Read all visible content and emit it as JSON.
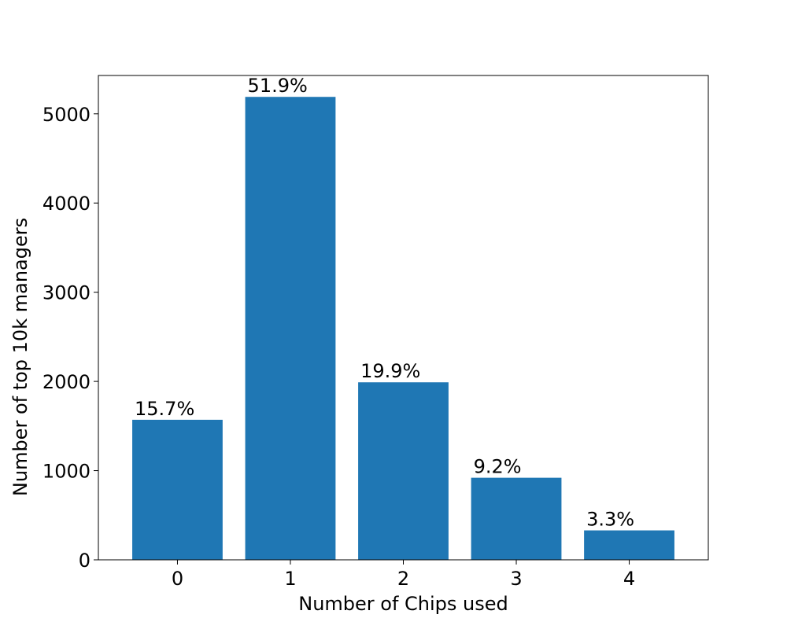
{
  "chart_data": {
    "type": "bar",
    "categories": [
      "0",
      "1",
      "2",
      "3",
      "4"
    ],
    "values": [
      1570,
      5190,
      1990,
      920,
      330
    ],
    "data_labels": [
      "15.7%",
      "51.9%",
      "19.9%",
      "9.2%",
      "3.3%"
    ],
    "xlabel": "Number of Chips used",
    "ylabel": "Number of top 10k managers",
    "ylim": [
      0,
      5430
    ],
    "yticks": [
      0,
      1000,
      2000,
      3000,
      4000,
      5000
    ],
    "grid": false,
    "bar_color": "#1f77b4",
    "axis_color": "#000000"
  }
}
